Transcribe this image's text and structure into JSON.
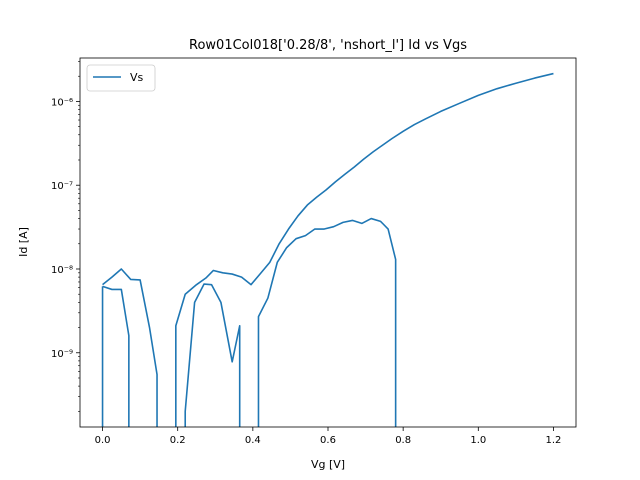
{
  "chart_data": {
    "type": "line",
    "title": "Row01Col018['0.28/8', 'nshort_l'] Id vs Vgs",
    "xlabel": "Vg [V]",
    "ylabel": "Id [A]",
    "xlim": [
      -0.06,
      1.26
    ],
    "ylim": [
      1.3e-10,
      3.3e-06
    ],
    "yscale": "log",
    "xticks": [
      0.0,
      0.2,
      0.4,
      0.6,
      0.8,
      1.0,
      1.2
    ],
    "xtick_labels": [
      "0.0",
      "0.2",
      "0.4",
      "0.6",
      "0.8",
      "1.0",
      "1.2"
    ],
    "yticks": [
      1e-09,
      1e-08,
      1e-07,
      1e-06
    ],
    "ytick_labels": [
      "10⁻⁹",
      "10⁻⁸",
      "10⁻⁷",
      "10⁻⁶"
    ],
    "grid": false,
    "legend": {
      "position": "top-left",
      "entries": [
        "Vs"
      ]
    },
    "series": [
      {
        "name": "Vs",
        "color": "#1f77b4",
        "segments": [
          {
            "x": [
              0.0,
              0.0
            ],
            "y": [
              1.3e-10,
              6.2e-09
            ]
          },
          {
            "x": [
              0.0,
              0.025,
              0.05,
              0.075,
              0.1,
              0.125,
              0.145,
              0.145
            ],
            "y": [
              6.5e-09,
              8e-09,
              1e-08,
              7.5e-09,
              7.4e-09,
              2e-09,
              5.5e-10,
              1.3e-10
            ]
          },
          {
            "x": [
              0.0,
              0.025,
              0.05,
              0.07,
              0.07
            ],
            "y": [
              6.2e-09,
              5.7e-09,
              5.7e-09,
              1.6e-09,
              1.3e-10
            ]
          },
          {
            "x": [
              0.195,
              0.195,
              0.22,
              0.25,
              0.275,
              0.295,
              0.32,
              0.345,
              0.37,
              0.395,
              0.42,
              0.445,
              0.47,
              0.495,
              0.52,
              0.545,
              0.57,
              0.595,
              0.62,
              0.645,
              0.67,
              0.695,
              0.72,
              0.745,
              0.77,
              0.8,
              0.83,
              0.86,
              0.9,
              0.95,
              1.0,
              1.05,
              1.1,
              1.15,
              1.2
            ],
            "y": [
              1.3e-10,
              2.1e-09,
              5e-09,
              6.5e-09,
              7.8e-09,
              9.6e-09,
              9e-09,
              8.7e-09,
              8e-09,
              6.5e-09,
              8.8e-09,
              1.2e-08,
              2e-08,
              3e-08,
              4.3e-08,
              5.8e-08,
              7.2e-08,
              8.8e-08,
              1.1e-07,
              1.35e-07,
              1.65e-07,
              2.05e-07,
              2.5e-07,
              3e-07,
              3.6e-07,
              4.4e-07,
              5.3e-07,
              6.2e-07,
              7.6e-07,
              9.5e-07,
              1.18e-06,
              1.42e-06,
              1.65e-06,
              1.9e-06,
              2.15e-06
            ]
          },
          {
            "x": [
              0.22,
              0.22,
              0.245,
              0.27,
              0.29,
              0.315,
              0.345,
              0.365,
              0.365
            ],
            "y": [
              1.3e-10,
              2e-10,
              4e-09,
              6.6e-09,
              6.5e-09,
              4e-09,
              7.8e-10,
              2.1e-09,
              1.3e-10
            ]
          },
          {
            "x": [
              0.415,
              0.415,
              0.44,
              0.465,
              0.49,
              0.515,
              0.54,
              0.565,
              0.59,
              0.615,
              0.64,
              0.665,
              0.69,
              0.715,
              0.74,
              0.76,
              0.78,
              0.78
            ],
            "y": [
              1.3e-10,
              2.7e-09,
              4.5e-09,
              1.2e-08,
              1.8e-08,
              2.3e-08,
              2.5e-08,
              3e-08,
              3e-08,
              3.2e-08,
              3.6e-08,
              3.8e-08,
              3.5e-08,
              4e-08,
              3.7e-08,
              3e-08,
              1.3e-08,
              1.3e-10
            ]
          }
        ]
      }
    ]
  }
}
